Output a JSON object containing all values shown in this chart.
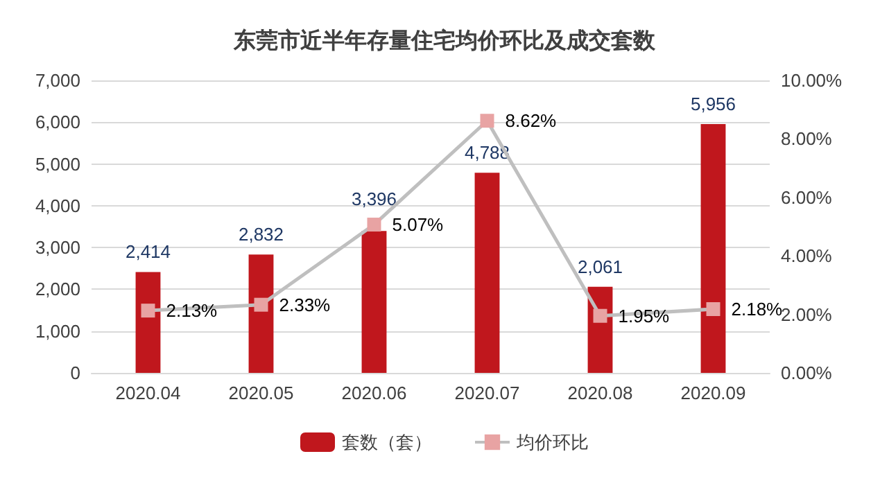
{
  "chart_data": {
    "type": "bar",
    "title": "东莞市近半年存量住宅均价环比及成交套数",
    "categories": [
      "2020.04",
      "2020.05",
      "2020.06",
      "2020.07",
      "2020.08",
      "2020.09"
    ],
    "series": [
      {
        "name": "套数（套）",
        "color": "#c0171d",
        "values": [
          2414,
          2832,
          3396,
          4788,
          2061,
          5956
        ],
        "value_labels": [
          "2,414",
          "2,832",
          "3,396",
          "4,788",
          "2,061",
          "5,956"
        ]
      },
      {
        "name": "均价环比",
        "type": "line",
        "axis": "y2",
        "color": "#bfbfbf",
        "values": [
          2.13,
          2.33,
          5.07,
          8.62,
          1.95,
          2.18
        ],
        "value_labels": [
          "2.13%",
          "2.33%",
          "5.07%",
          "8.62%",
          "1.95%",
          "2.18%"
        ]
      }
    ],
    "ylim": [
      0,
      7000
    ],
    "yticks": [
      0,
      {
        "value": 1000,
        "label": "1,000"
      },
      {
        "value": 2000,
        "label": "2,000"
      },
      {
        "value": 3000,
        "label": "3,000"
      },
      {
        "value": 4000,
        "label": "4,000"
      },
      {
        "value": 5000,
        "label": "5,000"
      },
      {
        "value": 6000,
        "label": "6,000"
      },
      {
        "value": 7000,
        "label": "7,000"
      }
    ],
    "y2lim": [
      0,
      10
    ],
    "y2ticks": [
      {
        "value": 0,
        "label": "0.00%"
      },
      {
        "value": 2,
        "label": "2.00%"
      },
      {
        "value": 4,
        "label": "4.00%"
      },
      {
        "value": 6,
        "label": "6.00%"
      },
      {
        "value": 8,
        "label": "8.00%"
      },
      {
        "value": 10,
        "label": "10.00%"
      }
    ],
    "grid": "y",
    "legend": "bottom",
    "marker": "square",
    "line_style": "solid"
  }
}
